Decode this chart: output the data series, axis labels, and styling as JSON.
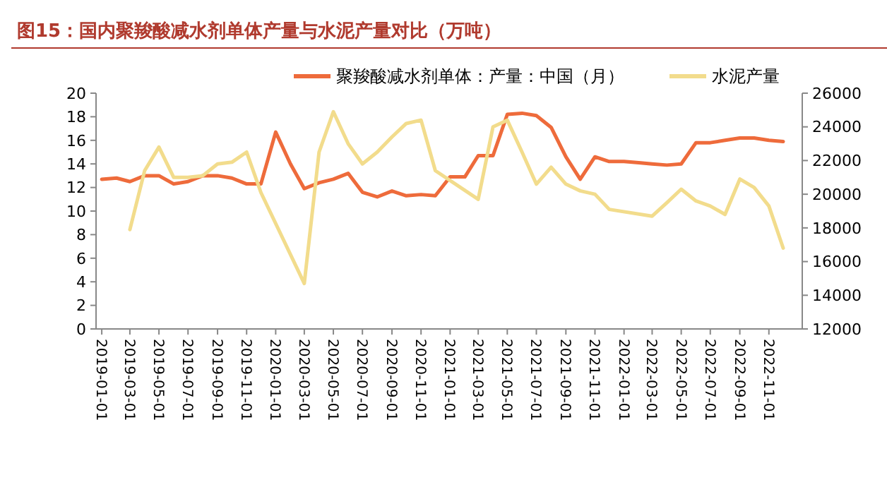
{
  "chart_data": {
    "type": "line",
    "title": "图15：国内聚羧酸减水剂单体产量与水泥产量对比（万吨）",
    "x": [
      "2019-01",
      "2019-02",
      "2019-03",
      "2019-04",
      "2019-05",
      "2019-06",
      "2019-07",
      "2019-08",
      "2019-09",
      "2019-10",
      "2019-11",
      "2019-12",
      "2020-01",
      "2020-02",
      "2020-03",
      "2020-04",
      "2020-05",
      "2020-06",
      "2020-07",
      "2020-08",
      "2020-09",
      "2020-10",
      "2020-11",
      "2020-12",
      "2021-01",
      "2021-02",
      "2021-03",
      "2021-04",
      "2021-05",
      "2021-06",
      "2021-07",
      "2021-08",
      "2021-09",
      "2021-10",
      "2021-11",
      "2021-12",
      "2022-01",
      "2022-02",
      "2022-03",
      "2022-04",
      "2022-05",
      "2022-06",
      "2022-07",
      "2022-08",
      "2022-09",
      "2022-10",
      "2022-11",
      "2022-12"
    ],
    "series": [
      {
        "name": "聚羧酸减水剂单体：产量：中国（月）",
        "color": "#ee6b3b",
        "values": [
          12.7,
          12.8,
          12.5,
          13.0,
          13.0,
          12.3,
          12.5,
          13.0,
          13.0,
          12.8,
          12.3,
          12.3,
          16.7,
          14.0,
          11.9,
          12.4,
          12.7,
          13.2,
          11.6,
          11.2,
          11.7,
          11.3,
          11.4,
          11.3,
          12.9,
          12.9,
          14.7,
          14.7,
          18.2,
          18.3,
          18.1,
          17.1,
          14.6,
          12.7,
          14.6,
          14.2,
          14.2,
          14.1,
          14.0,
          13.9,
          14.0,
          15.8,
          15.8,
          16.0,
          16.2,
          16.2,
          16.0,
          15.9
        ]
      },
      {
        "name": "水泥产量",
        "color": "#f2dc8c",
        "axis": "y2",
        "x": [
          "2019-03",
          "2019-04",
          "2019-05",
          "2019-06",
          "2019-07",
          "2019-08",
          "2019-09",
          "2019-10",
          "2019-11",
          "2019-12",
          "2020-03",
          "2020-04",
          "2020-05",
          "2020-06",
          "2020-07",
          "2020-08",
          "2020-09",
          "2020-10",
          "2020-11",
          "2020-12",
          "2021-03",
          "2021-04",
          "2021-05",
          "2021-06",
          "2021-07",
          "2021-08",
          "2021-09",
          "2021-10",
          "2021-11",
          "2021-12",
          "2022-03",
          "2022-04",
          "2022-05",
          "2022-06",
          "2022-07",
          "2022-08",
          "2022-09",
          "2022-10",
          "2022-11",
          "2022-12"
        ],
        "values": [
          17900,
          21400,
          22800,
          21000,
          21000,
          21100,
          21800,
          21900,
          22500,
          20100,
          14700,
          22500,
          24900,
          23000,
          21800,
          22500,
          23400,
          24200,
          24400,
          21400,
          19700,
          24000,
          24400,
          22500,
          20600,
          21600,
          20600,
          20200,
          20000,
          19100,
          18700,
          19500,
          20300,
          19600,
          19300,
          18800,
          20900,
          20400,
          19300,
          16800
        ]
      }
    ],
    "xlim": [
      "2018-12-20",
      "2023-01-10"
    ],
    "xticks": [
      "2019-01-01",
      "2019-03-01",
      "2019-05-01",
      "2019-07-01",
      "2019-09-01",
      "2019-11-01",
      "2020-01-01",
      "2020-03-01",
      "2020-05-01",
      "2020-07-01",
      "2020-09-01",
      "2020-11-01",
      "2021-01-01",
      "2021-03-01",
      "2021-05-01",
      "2021-07-01",
      "2021-09-01",
      "2021-11-01",
      "2022-01-01",
      "2022-03-01",
      "2022-05-01",
      "2022-07-01",
      "2022-09-01",
      "2022-11-01"
    ],
    "ylim": [
      0,
      20
    ],
    "yticks": [
      0,
      2,
      4,
      6,
      8,
      10,
      12,
      14,
      16,
      18,
      20
    ],
    "y2lim": [
      12000,
      26000
    ],
    "y2ticks": [
      12000,
      14000,
      16000,
      18000,
      20000,
      22000,
      24000,
      26000
    ],
    "legend": "top",
    "grid": false
  }
}
